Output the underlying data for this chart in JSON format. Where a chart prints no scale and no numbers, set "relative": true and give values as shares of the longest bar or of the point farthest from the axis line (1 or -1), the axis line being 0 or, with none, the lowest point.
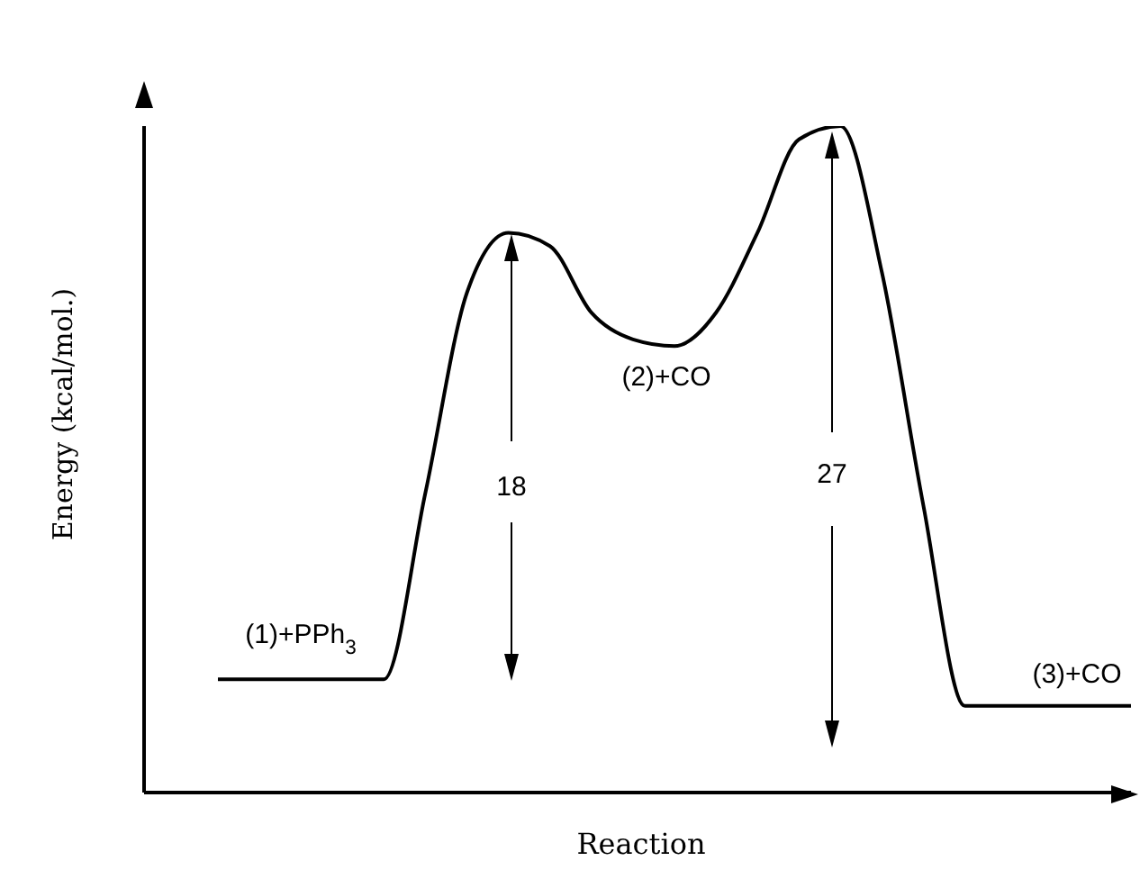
{
  "chart_data": {
    "type": "line",
    "xlabel": "Reaction",
    "ylabel": "Energy (kcal/mol.)",
    "relative": true,
    "categories": [
      null,
      null,
      null,
      null,
      null,
      null,
      null,
      null,
      null,
      null,
      null,
      null,
      null,
      null,
      null,
      null,
      null,
      null,
      null,
      null,
      null,
      null,
      null
    ],
    "series": [
      {
        "color": "#000000",
        "values": [
          0.17,
          0.17,
          0.17,
          0.17,
          0.17,
          0.45,
          0.75,
          0.84,
          0.82,
          0.72,
          0.68,
          0.67,
          0.72,
          0.84,
          0.98,
          1,
          0.78,
          0.43,
          0.13,
          0.13,
          0.13,
          0.13,
          0.13
        ]
      }
    ],
    "annotations": [
      "(1)+PPh$_{3}$",
      "(2)+CO",
      "(3)+CO",
      "18",
      "27"
    ],
    "marker": "none",
    "line_style": "solid",
    "grid": false,
    "legend": false
  }
}
